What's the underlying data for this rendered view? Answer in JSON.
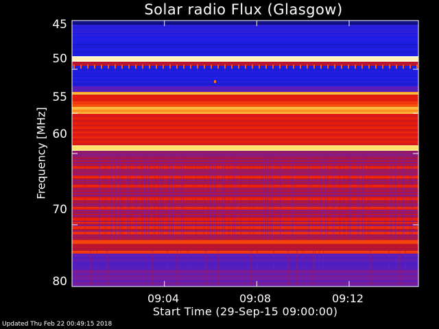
{
  "chart_data": {
    "type": "heatmap",
    "title": "Solar radio Flux (Glasgow)",
    "ylabel": "Frequency [MHz]",
    "xlabel": "Start Time (29-Sep-15 09:00:00)",
    "y_ticks": [
      "45",
      "50",
      "55",
      "60",
      "70",
      "80"
    ],
    "x_ticks": [
      "09:04",
      "09:08",
      "09:12"
    ],
    "ylim": [
      45,
      80
    ],
    "xlim_minutes": [
      0,
      15
    ],
    "y_scale": "log (reversed, 45 at top)",
    "colormap": "blue-red-yellow-white",
    "frequency_bands": [
      {
        "f": [
          45,
          46.5
        ],
        "level": "low"
      },
      {
        "f": [
          46.5,
          48.5
        ],
        "level": "low"
      },
      {
        "f": [
          48.8,
          49.2
        ],
        "level": "very high"
      },
      {
        "f": [
          49.3,
          51.5
        ],
        "level": "low"
      },
      {
        "f": [
          52.5,
          53.5
        ],
        "level": "high"
      },
      {
        "f": [
          53.5,
          59
        ],
        "level": "high"
      },
      {
        "f": [
          59,
          59.6
        ],
        "level": "very high"
      },
      {
        "f": [
          60,
          72
        ],
        "level": "medium"
      },
      {
        "f": [
          72.5,
          73
        ],
        "level": "high"
      },
      {
        "f": [
          73.5,
          80
        ],
        "level": "low"
      }
    ]
  },
  "footer": {
    "updated": "Updated Thu Feb 22 00:49:15 2018"
  }
}
